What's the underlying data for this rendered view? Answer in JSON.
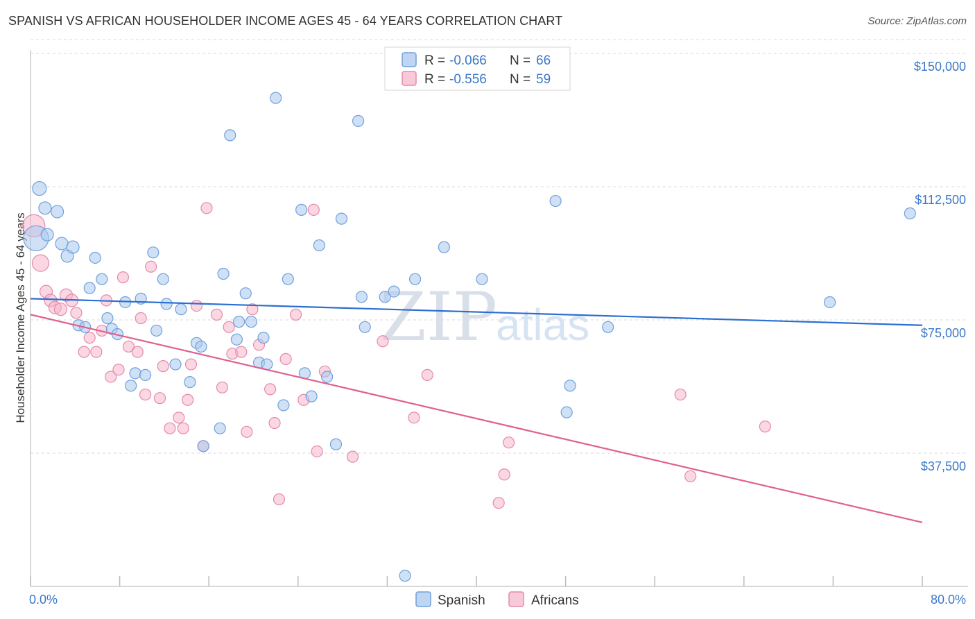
{
  "header": {
    "title": "SPANISH VS AFRICAN HOUSEHOLDER INCOME AGES 45 - 64 YEARS CORRELATION CHART",
    "source": "Source: ZipAtlas.com"
  },
  "watermark": {
    "zip": "ZIP",
    "atlas": "atlas"
  },
  "legend_top": [
    {
      "r_label": "R = ",
      "r_value": "-0.066",
      "n_label": "N = ",
      "n_value": "66",
      "color": "#a9c8ee"
    },
    {
      "r_label": "R = ",
      "r_value": "-0.556",
      "n_label": "N = ",
      "n_value": "59",
      "color": "#f5b7cb"
    }
  ],
  "legend_bottom": [
    {
      "label": "Spanish",
      "color": "#a9c8ee"
    },
    {
      "label": "Africans",
      "color": "#f5b7cb"
    }
  ],
  "colors": {
    "spanish_fill": "#a9c8ee",
    "spanish_stroke": "#6fa0dc",
    "spanish_line": "#2c6fd1",
    "africans_fill": "#f5b7cb",
    "africans_stroke": "#e58aa9",
    "africans_line": "#e0608e",
    "tick_text": "#3a78c9",
    "grid": "#d8d8d8"
  },
  "chart_data": {
    "type": "scatter",
    "title": "SPANISH VS AFRICAN HOUSEHOLDER INCOME AGES 45 - 64 YEARS CORRELATION CHART",
    "xlabel": "",
    "ylabel": "Householder Income Ages 45 - 64 years",
    "xlim": [
      0,
      80
    ],
    "ylim": [
      0,
      151000
    ],
    "x_tick_labels": [
      "0.0%",
      "80.0%"
    ],
    "y_ticks": [
      37500,
      75000,
      112500,
      150000
    ],
    "y_tick_labels": [
      "$37,500",
      "$75,000",
      "$112,500",
      "$150,000"
    ],
    "grid": true,
    "series": [
      {
        "name": "Spanish",
        "r": -0.066,
        "n": 66,
        "trend": {
          "x": [
            0,
            80
          ],
          "y": [
            81000,
            73500
          ]
        },
        "points": [
          [
            0.5,
            98000,
            18
          ],
          [
            0.8,
            112000,
            10
          ],
          [
            1.3,
            106500,
            9
          ],
          [
            1.5,
            99000,
            9
          ],
          [
            2.4,
            105500,
            9
          ],
          [
            2.8,
            96500,
            9
          ],
          [
            3.3,
            93000,
            9
          ],
          [
            3.8,
            95500,
            9
          ],
          [
            4.3,
            73500,
            8
          ],
          [
            4.9,
            73000,
            8
          ],
          [
            5.3,
            84000,
            8
          ],
          [
            5.8,
            92500,
            8
          ],
          [
            6.4,
            86500,
            8
          ],
          [
            6.9,
            75500,
            8
          ],
          [
            7.3,
            72500,
            8
          ],
          [
            7.8,
            71000,
            8
          ],
          [
            8.5,
            80000,
            8
          ],
          [
            9.0,
            56500,
            8
          ],
          [
            9.4,
            60000,
            8
          ],
          [
            9.9,
            81000,
            8
          ],
          [
            10.3,
            59500,
            8
          ],
          [
            11.0,
            94000,
            8
          ],
          [
            11.3,
            72000,
            8
          ],
          [
            11.9,
            86500,
            8
          ],
          [
            12.2,
            79500,
            8
          ],
          [
            13.0,
            62500,
            8
          ],
          [
            13.5,
            78000,
            8
          ],
          [
            14.3,
            57500,
            8
          ],
          [
            14.9,
            68500,
            8
          ],
          [
            15.3,
            67500,
            8
          ],
          [
            15.5,
            39500,
            8
          ],
          [
            17.0,
            44500,
            8
          ],
          [
            17.3,
            88000,
            8
          ],
          [
            17.9,
            127000,
            8
          ],
          [
            18.5,
            69500,
            8
          ],
          [
            18.7,
            74500,
            8
          ],
          [
            19.3,
            82500,
            8
          ],
          [
            19.8,
            74500,
            8
          ],
          [
            20.5,
            63000,
            8
          ],
          [
            20.9,
            70000,
            8
          ],
          [
            21.2,
            62500,
            8
          ],
          [
            22.0,
            137500,
            8
          ],
          [
            22.7,
            51000,
            8
          ],
          [
            23.1,
            86500,
            8
          ],
          [
            24.3,
            106000,
            8
          ],
          [
            24.6,
            60000,
            8
          ],
          [
            25.2,
            53500,
            8
          ],
          [
            25.9,
            96000,
            8
          ],
          [
            26.6,
            59000,
            8
          ],
          [
            27.4,
            40000,
            8
          ],
          [
            27.9,
            103500,
            8
          ],
          [
            29.4,
            131000,
            8
          ],
          [
            29.7,
            81500,
            8
          ],
          [
            30.0,
            73000,
            8
          ],
          [
            31.8,
            81500,
            8
          ],
          [
            32.6,
            83000,
            8
          ],
          [
            33.6,
            3000,
            8
          ],
          [
            34.5,
            86500,
            8
          ],
          [
            37.1,
            95500,
            8
          ],
          [
            40.5,
            86500,
            8
          ],
          [
            47.1,
            108500,
            8
          ],
          [
            48.1,
            49000,
            8
          ],
          [
            48.4,
            56500,
            8
          ],
          [
            51.8,
            73000,
            8
          ],
          [
            71.7,
            80000,
            8
          ],
          [
            78.9,
            105000,
            8
          ]
        ]
      },
      {
        "name": "Africans",
        "r": -0.556,
        "n": 59,
        "trend": {
          "x": [
            0,
            80
          ],
          "y": [
            76500,
            18000
          ]
        },
        "points": [
          [
            0.3,
            101500,
            16
          ],
          [
            0.9,
            91000,
            12
          ],
          [
            1.4,
            83000,
            9
          ],
          [
            1.8,
            80500,
            9
          ],
          [
            2.2,
            78500,
            9
          ],
          [
            2.7,
            78000,
            9
          ],
          [
            3.2,
            82000,
            9
          ],
          [
            3.7,
            80500,
            9
          ],
          [
            4.1,
            77000,
            8
          ],
          [
            4.8,
            66000,
            8
          ],
          [
            5.3,
            70000,
            8
          ],
          [
            5.9,
            66000,
            8
          ],
          [
            6.4,
            72000,
            8
          ],
          [
            6.8,
            80500,
            8
          ],
          [
            7.2,
            59000,
            8
          ],
          [
            7.9,
            61000,
            8
          ],
          [
            8.3,
            87000,
            8
          ],
          [
            8.8,
            67500,
            8
          ],
          [
            9.6,
            66000,
            8
          ],
          [
            9.9,
            75500,
            8
          ],
          [
            10.3,
            54000,
            8
          ],
          [
            10.8,
            90000,
            8
          ],
          [
            11.6,
            53000,
            8
          ],
          [
            11.9,
            62000,
            8
          ],
          [
            12.5,
            44500,
            8
          ],
          [
            13.3,
            47500,
            8
          ],
          [
            13.7,
            44500,
            8
          ],
          [
            14.1,
            52500,
            8
          ],
          [
            14.4,
            62500,
            8
          ],
          [
            14.9,
            79000,
            8
          ],
          [
            15.5,
            39500,
            8
          ],
          [
            15.8,
            106500,
            8
          ],
          [
            16.7,
            76500,
            8
          ],
          [
            17.2,
            56000,
            8
          ],
          [
            17.8,
            73000,
            8
          ],
          [
            18.1,
            65500,
            8
          ],
          [
            18.9,
            66000,
            8
          ],
          [
            19.4,
            43500,
            8
          ],
          [
            19.9,
            78000,
            8
          ],
          [
            20.5,
            68000,
            8
          ],
          [
            21.5,
            55500,
            8
          ],
          [
            21.9,
            46000,
            8
          ],
          [
            22.3,
            24500,
            8
          ],
          [
            22.9,
            64000,
            8
          ],
          [
            23.8,
            76500,
            8
          ],
          [
            24.5,
            52500,
            8
          ],
          [
            25.4,
            106000,
            8
          ],
          [
            25.7,
            38000,
            8
          ],
          [
            26.4,
            60500,
            8
          ],
          [
            28.9,
            36500,
            8
          ],
          [
            31.6,
            69000,
            8
          ],
          [
            34.4,
            47500,
            8
          ],
          [
            35.6,
            59500,
            8
          ],
          [
            42.5,
            31500,
            8
          ],
          [
            42.9,
            40500,
            8
          ],
          [
            42.0,
            23500,
            8
          ],
          [
            58.3,
            54000,
            8
          ],
          [
            59.2,
            31000,
            8
          ],
          [
            65.9,
            45000,
            8
          ]
        ]
      }
    ]
  },
  "misc": {}
}
